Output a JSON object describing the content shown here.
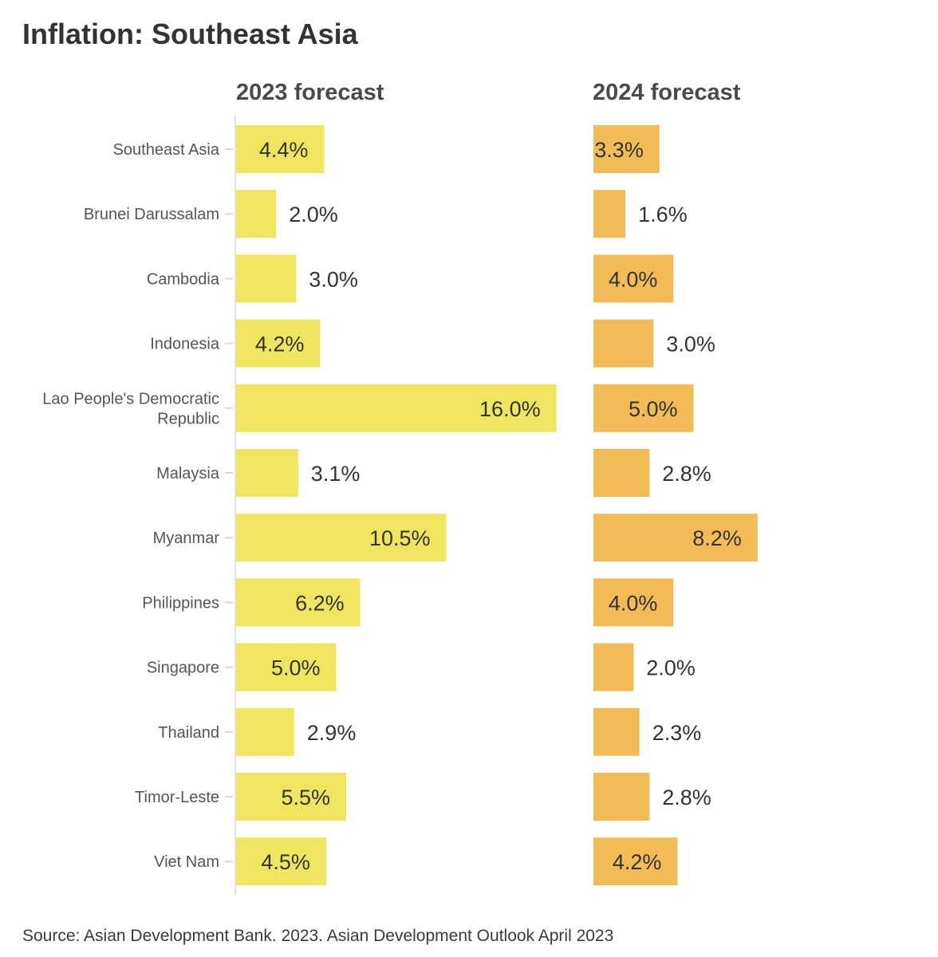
{
  "title": "Inflation: Southeast Asia",
  "source": "Source: Asian Development Bank. 2023. Asian Development Outlook April 2023",
  "chart_data": {
    "type": "bar",
    "orientation": "horizontal",
    "categories": [
      "Southeast Asia",
      "Brunei Darussalam",
      "Cambodia",
      "Indonesia",
      "Lao People's Democratic Republic",
      "Malaysia",
      "Myanmar",
      "Philippines",
      "Singapore",
      "Thailand",
      "Timor-Leste",
      "Viet Nam"
    ],
    "series": [
      {
        "name": "2023 forecast",
        "color": "#f0e55e",
        "values": [
          4.4,
          2.0,
          3.0,
          4.2,
          16.0,
          3.1,
          10.5,
          6.2,
          5.0,
          2.9,
          5.5,
          4.5
        ],
        "labels": [
          "4.4%",
          "2.0%",
          "3.0%",
          "4.2%",
          "16.0%",
          "3.1%",
          "10.5%",
          "6.2%",
          "5.0%",
          "2.9%",
          "5.5%",
          "4.5%"
        ]
      },
      {
        "name": "2024 forecast",
        "color": "#f2bb55",
        "values": [
          3.3,
          1.6,
          4.0,
          3.0,
          5.0,
          2.8,
          8.2,
          4.0,
          2.0,
          2.3,
          2.8,
          4.2
        ],
        "labels": [
          "3.3%",
          "1.6%",
          "4.0%",
          "3.0%",
          "5.0%",
          "2.8%",
          "8.2%",
          "4.0%",
          "2.0%",
          "2.3%",
          "2.8%",
          "4.2%"
        ]
      }
    ],
    "xlim": [
      0,
      16.0
    ],
    "grid": false,
    "legend": "none"
  }
}
